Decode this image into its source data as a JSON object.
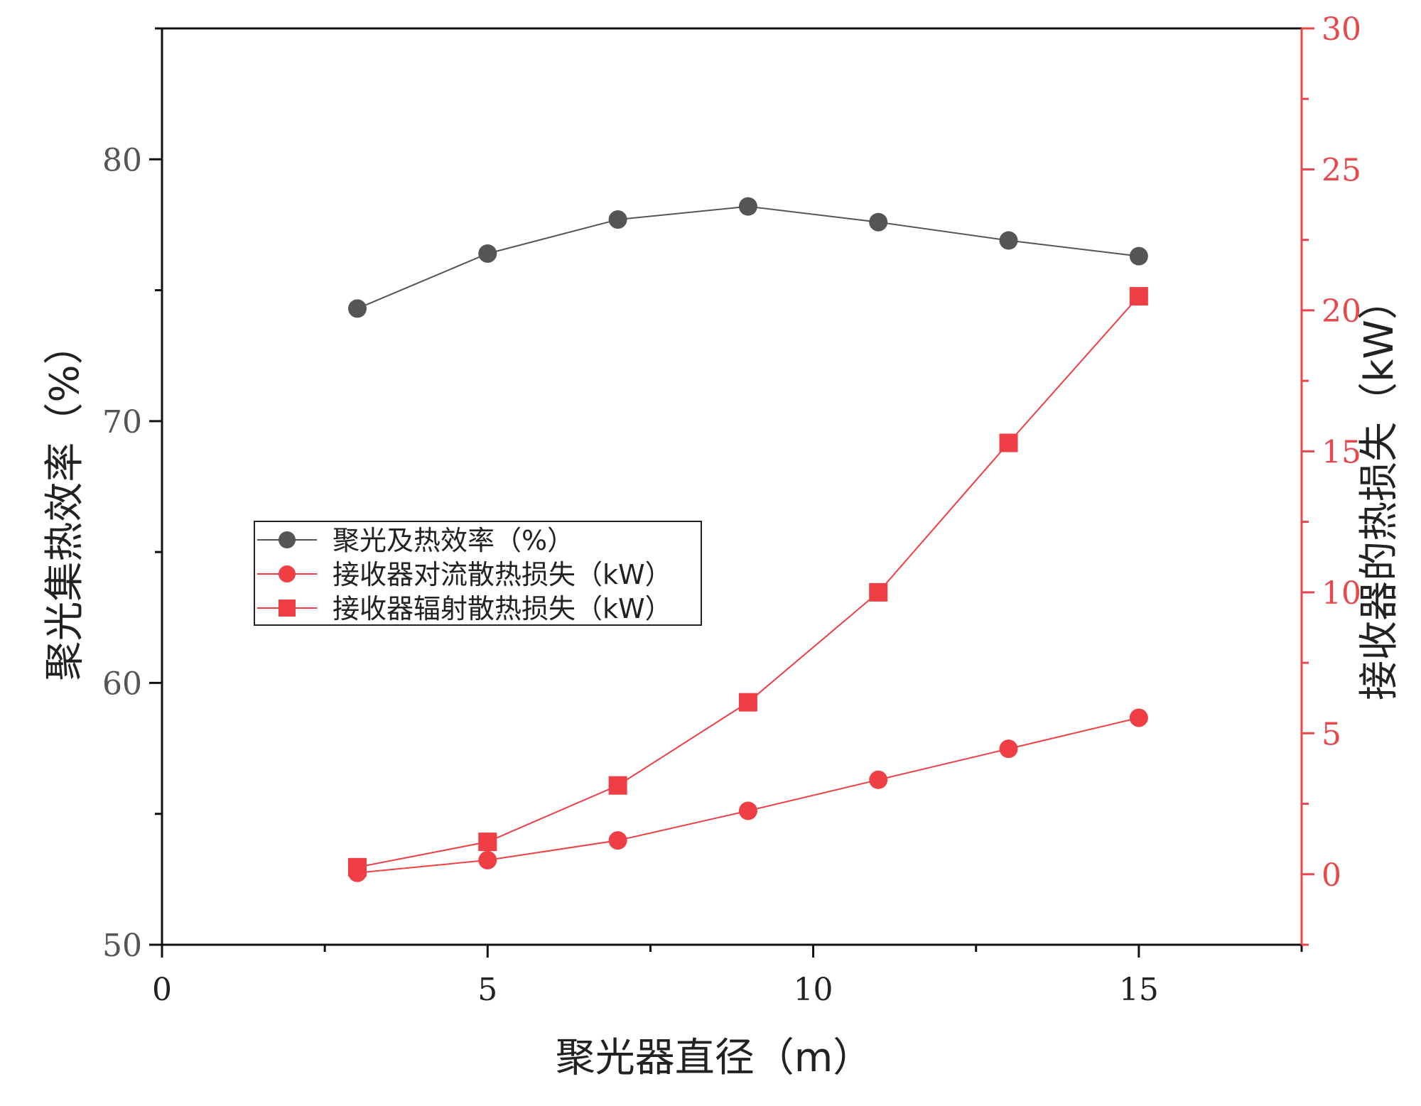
{
  "colors": {
    "efficiency": "#555555",
    "loss": "#ef3e44",
    "right_axis": "#e8474b",
    "axis": "#111111"
  },
  "chart_data": {
    "type": "line",
    "xlabel": "聚光器直径（m）",
    "ylabel_left": "聚光集热效率（%）",
    "ylabel_right": "接收器的热损失（kW）",
    "x_ticks": [
      "0",
      "5",
      "10",
      "15"
    ],
    "y_left_ticks": [
      "50",
      "60",
      "70",
      "80"
    ],
    "y_right_ticks": [
      "0",
      "5",
      "10",
      "15",
      "20",
      "25",
      "30"
    ],
    "xlim": [
      0,
      17.5
    ],
    "ylim_left": [
      50,
      85
    ],
    "ylim_right": [
      -2.5,
      30
    ],
    "legend_position": "center-left",
    "series": [
      {
        "name": "聚光及热效率（%）",
        "axis": "left",
        "marker": "circle",
        "color": "#555555",
        "x": [
          3,
          5,
          7,
          9,
          11,
          13,
          15
        ],
        "y": [
          74.3,
          76.4,
          77.7,
          78.2,
          77.6,
          76.9,
          76.3
        ]
      },
      {
        "name": "接收器对流散热损失（kW）",
        "axis": "right",
        "marker": "circle",
        "color": "#ef3e44",
        "x": [
          3,
          5,
          7,
          9,
          11,
          13,
          15
        ],
        "y": [
          0.05,
          0.5,
          1.2,
          2.25,
          3.35,
          4.45,
          5.55
        ]
      },
      {
        "name": "接收器辐射散热损失（kW）",
        "axis": "right",
        "marker": "square",
        "color": "#ef3e44",
        "x": [
          3,
          5,
          7,
          9,
          11,
          13,
          15
        ],
        "y": [
          0.25,
          1.15,
          3.15,
          6.1,
          10.0,
          15.3,
          20.5
        ]
      }
    ]
  }
}
